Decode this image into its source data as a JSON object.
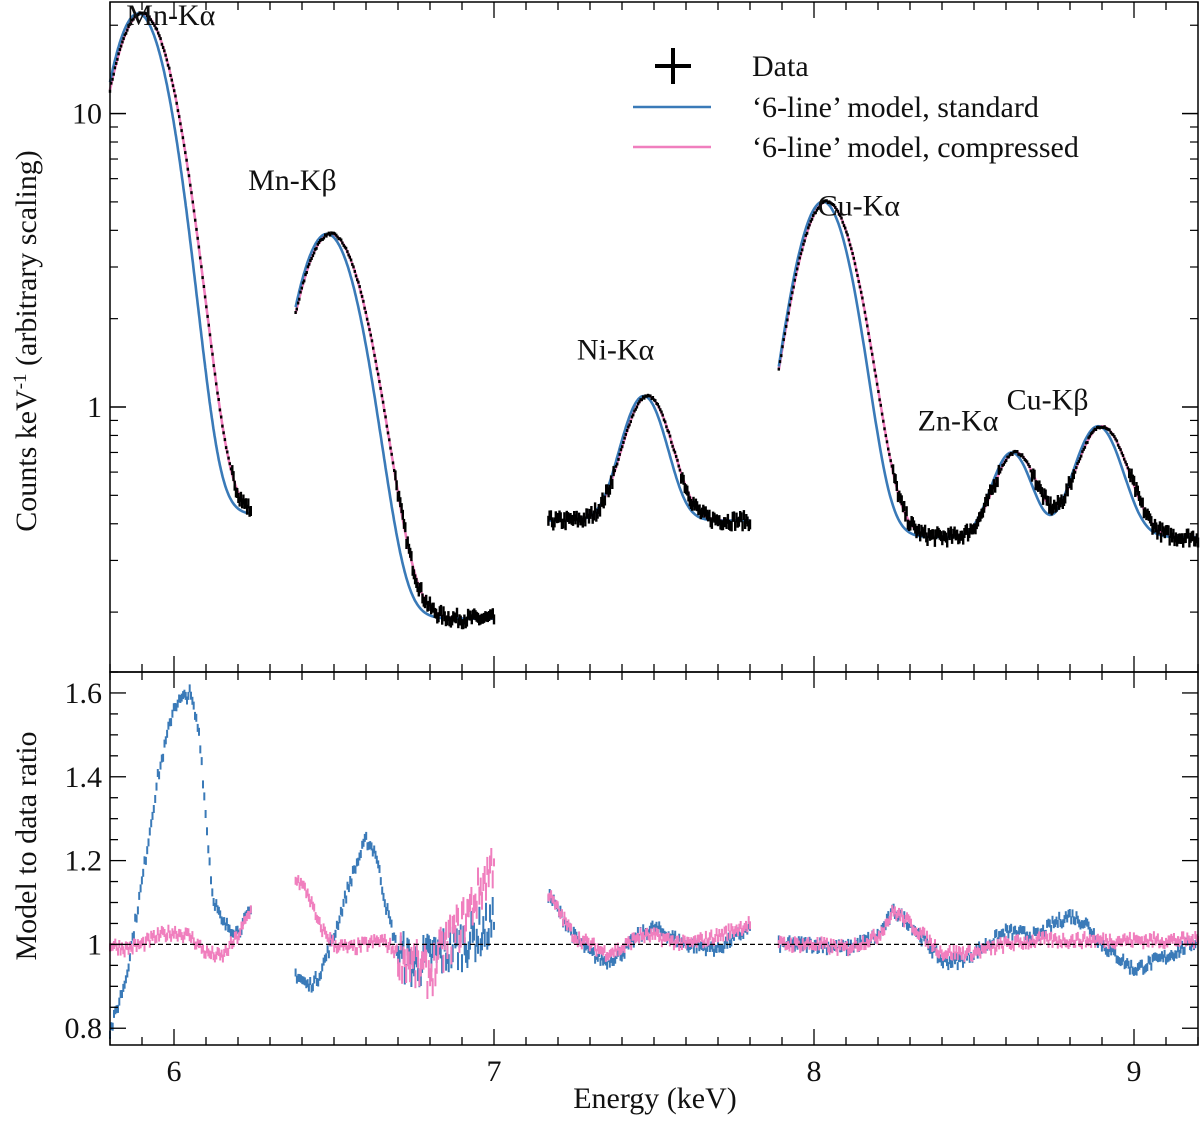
{
  "chart_data": [
    {
      "type": "line",
      "panel": "top",
      "ylabel_main": "Counts keV",
      "ylabel_sup": "-1",
      "ylabel_rest": " (arbitrary scaling)",
      "yscale": "log",
      "xlim": [
        5.8,
        9.2
      ],
      "ylim": [
        0.125,
        24
      ],
      "yticks": [
        1,
        10
      ],
      "ytick_labels": [
        "1",
        "10"
      ],
      "legend": {
        "position": "top-right",
        "entries": [
          {
            "label": "Data",
            "kind": "marker"
          },
          {
            "label": "‘6-line’ model, standard",
            "color": "#3a7ab8"
          },
          {
            "label": "‘6-line’ model, compressed",
            "color": "#f07fbe"
          }
        ]
      },
      "annotations": [
        {
          "text": "Mn-Kα",
          "x": 5.99,
          "y": 20
        },
        {
          "text": "Mn-Kβ",
          "x": 6.37,
          "y": 5.5
        },
        {
          "text": "Ni-Kα",
          "x": 7.38,
          "y": 1.45
        },
        {
          "text": "Cu-Kα",
          "x": 8.14,
          "y": 4.5
        },
        {
          "text": "Zn-Kα",
          "x": 8.45,
          "y": 0.83
        },
        {
          "text": "Cu-Kβ",
          "x": 8.73,
          "y": 0.98
        }
      ],
      "segments": [
        {
          "range": [
            5.8,
            6.24
          ],
          "lines": [
            {
              "center": 5.9,
              "amp": 21.5,
              "sigma": 0.09
            }
          ],
          "background": 0.43
        },
        {
          "range": [
            6.38,
            7.0
          ],
          "lines": [
            {
              "center": 6.49,
              "amp": 3.7,
              "sigma": 0.095
            }
          ],
          "background": 0.19
        },
        {
          "range": [
            7.17,
            7.8
          ],
          "lines": [
            {
              "center": 7.48,
              "amp": 0.68,
              "sigma": 0.065
            }
          ],
          "background": 0.41
        },
        {
          "range": [
            7.89,
            9.2
          ],
          "lines": [
            {
              "center": 8.04,
              "amp": 4.65,
              "sigma": 0.085
            },
            {
              "center": 8.63,
              "amp": 0.34,
              "sigma": 0.06
            },
            {
              "center": 8.9,
              "amp": 0.5,
              "sigma": 0.07
            }
          ],
          "background": 0.36
        }
      ],
      "series": [
        {
          "name": "Data",
          "color": "#000000"
        },
        {
          "name": "‘6-line’ model, standard",
          "color": "#3a7ab8"
        },
        {
          "name": "‘6-line’ model, compressed",
          "color": "#f07fbe"
        }
      ]
    },
    {
      "type": "line",
      "panel": "bottom",
      "xlabel": "Energy (keV)",
      "ylabel": "Model to data ratio",
      "xlim": [
        5.8,
        9.2
      ],
      "ylim": [
        0.76,
        1.65
      ],
      "xticks": [
        6,
        7,
        8,
        9
      ],
      "xtick_labels": [
        "6",
        "7",
        "8",
        "9"
      ],
      "yticks": [
        0.8,
        1,
        1.2,
        1.4,
        1.6
      ],
      "ytick_labels": [
        "0.8",
        "1",
        "1.2",
        "1.4",
        "1.6"
      ],
      "reference_line": 1.0,
      "series": [
        {
          "name": "standard",
          "color": "#3a7ab8",
          "segments": [
            {
              "x": [
                5.8,
                5.85,
                5.9,
                5.95,
                6.0,
                6.05,
                6.08,
                6.1,
                6.12,
                6.15,
                6.2,
                6.24
              ],
              "y": [
                0.79,
                0.92,
                1.15,
                1.4,
                1.57,
                1.6,
                1.5,
                1.3,
                1.12,
                1.05,
                1.03,
                1.08
              ]
            },
            {
              "x": [
                6.38,
                6.42,
                6.45,
                6.5,
                6.55,
                6.6,
                6.63,
                6.66,
                6.7,
                6.75,
                6.8,
                6.9,
                7.0
              ],
              "y": [
                0.93,
                0.9,
                0.92,
                1.02,
                1.15,
                1.25,
                1.22,
                1.1,
                0.98,
                0.95,
                0.97,
                1.0,
                1.05
              ]
            },
            {
              "x": [
                7.17,
                7.25,
                7.3,
                7.35,
                7.4,
                7.45,
                7.5,
                7.55,
                7.6,
                7.7,
                7.8
              ],
              "y": [
                1.12,
                1.02,
                0.98,
                0.96,
                0.98,
                1.02,
                1.04,
                1.02,
                1.0,
                0.99,
                1.04
              ]
            },
            {
              "x": [
                7.89,
                8.0,
                8.1,
                8.2,
                8.25,
                8.3,
                8.4,
                8.45,
                8.5,
                8.6,
                8.7,
                8.75,
                8.8,
                8.85,
                8.9,
                9.0,
                9.1,
                9.2
              ],
              "y": [
                1.0,
                1.0,
                0.99,
                1.02,
                1.08,
                1.05,
                0.96,
                0.96,
                0.98,
                1.03,
                1.02,
                1.05,
                1.07,
                1.05,
                1.0,
                0.94,
                0.97,
                1.01
              ]
            }
          ]
        },
        {
          "name": "compressed",
          "color": "#f07fbe",
          "segments": [
            {
              "x": [
                5.8,
                5.85,
                5.9,
                5.95,
                6.0,
                6.05,
                6.1,
                6.15,
                6.2,
                6.24
              ],
              "y": [
                1.0,
                0.99,
                1.0,
                1.02,
                1.03,
                1.02,
                0.98,
                0.97,
                1.02,
                1.08
              ]
            },
            {
              "x": [
                6.38,
                6.42,
                6.45,
                6.5,
                6.55,
                6.6,
                6.65,
                6.7,
                6.75,
                6.8,
                6.85,
                6.9,
                6.95,
                7.0
              ],
              "y": [
                1.16,
                1.12,
                1.05,
                1.0,
                0.99,
                1.0,
                1.01,
                0.98,
                0.95,
                0.93,
                1.0,
                1.05,
                1.12,
                1.2
              ]
            },
            {
              "x": [
                7.17,
                7.25,
                7.3,
                7.35,
                7.4,
                7.45,
                7.5,
                7.55,
                7.6,
                7.7,
                7.8
              ],
              "y": [
                1.12,
                1.02,
                1.0,
                0.98,
                0.99,
                1.02,
                1.02,
                1.01,
                1.0,
                1.02,
                1.05
              ]
            },
            {
              "x": [
                7.89,
                8.0,
                8.1,
                8.2,
                8.25,
                8.3,
                8.4,
                8.5,
                8.6,
                8.7,
                8.8,
                8.9,
                9.0,
                9.1,
                9.2
              ],
              "y": [
                1.0,
                1.0,
                0.99,
                1.02,
                1.08,
                1.05,
                0.98,
                0.98,
                1.0,
                1.01,
                1.01,
                1.01,
                1.01,
                1.01,
                1.01
              ]
            }
          ]
        }
      ]
    }
  ]
}
